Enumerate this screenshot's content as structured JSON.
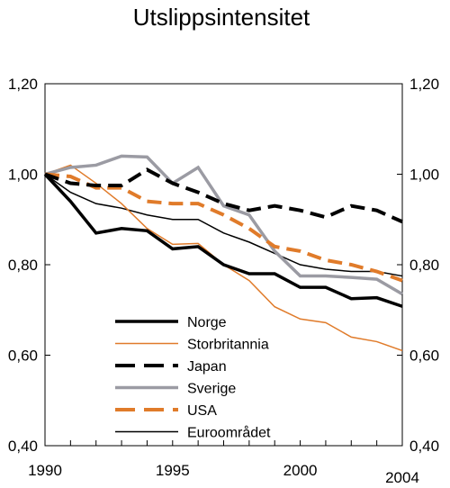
{
  "chart_data": {
    "type": "line",
    "title": "Utslippsintensitet",
    "xlabel": "",
    "ylabel": "",
    "x": [
      1990,
      1991,
      1992,
      1993,
      1994,
      1995,
      1996,
      1997,
      1998,
      1999,
      2000,
      2001,
      2002,
      2003,
      2004
    ],
    "xlim": [
      1990,
      2004
    ],
    "ylim": [
      0.4,
      1.2
    ],
    "x_ticks": [
      "1990",
      "1995",
      "2000",
      "2004"
    ],
    "y_ticks": [
      "0,40",
      "0,60",
      "0,80",
      "1,00",
      "1,20"
    ],
    "grid": false,
    "legend_position": "bottom-center",
    "series": [
      {
        "name": "Norge",
        "color": "#000000",
        "style": "solid-thick",
        "values": [
          1.0,
          0.94,
          0.87,
          0.88,
          0.875,
          0.835,
          0.84,
          0.8,
          0.78,
          0.78,
          0.75,
          0.75,
          0.725,
          0.727,
          0.708
        ]
      },
      {
        "name": "Storbritannia",
        "color": "#e07b2a",
        "style": "solid-thin",
        "values": [
          1.0,
          1.02,
          0.98,
          0.935,
          0.88,
          0.845,
          0.847,
          0.8,
          0.765,
          0.707,
          0.68,
          0.672,
          0.64,
          0.63,
          0.61
        ]
      },
      {
        "name": "Japan",
        "color": "#000000",
        "style": "dashed-thick",
        "values": [
          1.0,
          0.98,
          0.975,
          0.975,
          1.01,
          0.98,
          0.96,
          0.935,
          0.92,
          0.93,
          0.92,
          0.905,
          0.93,
          0.92,
          0.895
        ]
      },
      {
        "name": "Sverige",
        "color": "#9b9ba3",
        "style": "solid-thick",
        "values": [
          1.0,
          1.015,
          1.02,
          1.04,
          1.038,
          0.98,
          1.015,
          0.93,
          0.91,
          0.83,
          0.775,
          0.775,
          0.772,
          0.768,
          0.735
        ]
      },
      {
        "name": "USA",
        "color": "#e07b2a",
        "style": "dashed-thick",
        "values": [
          1.0,
          0.995,
          0.97,
          0.97,
          0.94,
          0.935,
          0.935,
          0.91,
          0.88,
          0.84,
          0.83,
          0.81,
          0.8,
          0.785,
          0.765
        ]
      },
      {
        "name": "Euroområdet",
        "color": "#000000",
        "style": "solid-thin",
        "values": [
          1.0,
          0.96,
          0.935,
          0.925,
          0.91,
          0.9,
          0.9,
          0.87,
          0.85,
          0.825,
          0.8,
          0.79,
          0.785,
          0.785,
          0.775
        ]
      }
    ]
  }
}
